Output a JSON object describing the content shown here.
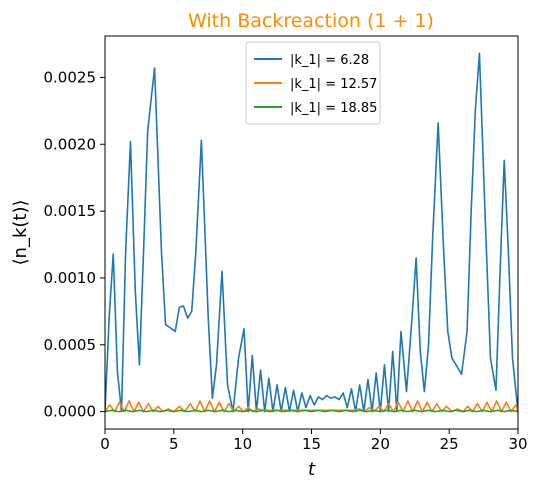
{
  "chart_data": {
    "type": "line",
    "title": "With Backreaction (1 + 1)",
    "title_color": "#ff8c00",
    "xlabel": "t",
    "ylabel": "⟨n_k(t)⟩",
    "xlim": [
      0,
      30
    ],
    "ylim": [
      -0.00013,
      0.00281
    ],
    "xticks": [
      0,
      5,
      10,
      15,
      20,
      25,
      30
    ],
    "xtick_labels": [
      "0",
      "5",
      "10",
      "15",
      "20",
      "25",
      "30"
    ],
    "yticks": [
      0.0,
      0.0005,
      0.001,
      0.0015,
      0.002,
      0.0025
    ],
    "ytick_labels": [
      "0.0000",
      "0.0005",
      "0.0010",
      "0.0015",
      "0.0020",
      "0.0025"
    ],
    "grid": false,
    "legend_position": "top-center",
    "series": [
      {
        "name": "|k_1| = 6.28",
        "color": "#1f77b4",
        "x": [
          0.0,
          0.3,
          0.6,
          0.9,
          1.2,
          1.5,
          1.85,
          2.2,
          2.5,
          2.8,
          3.1,
          3.6,
          4.1,
          4.4,
          4.7,
          5.1,
          5.4,
          5.7,
          6.0,
          6.3,
          6.6,
          7.0,
          7.5,
          7.8,
          8.1,
          8.5,
          8.9,
          9.3,
          9.7,
          10.1,
          10.4,
          10.7,
          11.0,
          11.3,
          11.6,
          11.9,
          12.2,
          12.5,
          12.8,
          13.1,
          13.4,
          13.7,
          14.0,
          14.3,
          14.6,
          14.9,
          15.2,
          15.5,
          15.8,
          16.1,
          16.4,
          16.7,
          17.0,
          17.3,
          17.6,
          17.9,
          18.2,
          18.5,
          18.8,
          19.1,
          19.4,
          19.7,
          20.0,
          20.3,
          20.6,
          20.9,
          21.2,
          21.5,
          21.9,
          22.3,
          22.6,
          22.9,
          23.2,
          23.5,
          23.8,
          24.2,
          24.6,
          24.9,
          25.2,
          25.5,
          25.9,
          26.3,
          26.6,
          26.9,
          27.2,
          27.6,
          28.0,
          28.4,
          28.7,
          29.0,
          29.3,
          29.6,
          30.0
        ],
        "y": [
          0.0,
          0.0007,
          0.00118,
          0.0003,
          0.0,
          0.0012,
          0.00202,
          0.0009,
          0.00035,
          0.0012,
          0.0021,
          0.00257,
          0.0012,
          0.00065,
          0.00063,
          0.0006,
          0.00078,
          0.00079,
          0.0007,
          0.00075,
          0.0012,
          0.00203,
          0.0007,
          0.0001,
          0.00035,
          0.00105,
          0.0002,
          0.0,
          0.0004,
          0.00062,
          0.0,
          0.00042,
          0.0,
          0.00031,
          0.0,
          0.00025,
          0.0,
          0.0002,
          0.0,
          0.00018,
          0.0,
          0.00016,
          0.0,
          0.00014,
          3e-05,
          0.00012,
          5e-05,
          0.00011,
          9e-05,
          0.00012,
          0.0001,
          0.00011,
          9e-05,
          0.00014,
          3e-05,
          0.00017,
          0.0,
          0.0002,
          0.0,
          0.00024,
          0.0,
          0.00029,
          0.0,
          0.00035,
          0.0,
          0.00045,
          0.0,
          0.0006,
          0.00015,
          0.0007,
          0.00115,
          0.00045,
          0.00015,
          0.0005,
          0.0013,
          0.00216,
          0.0012,
          0.0006,
          0.0004,
          0.00035,
          0.00028,
          0.0006,
          0.0015,
          0.00225,
          0.00268,
          0.0015,
          0.0004,
          0.00016,
          0.00105,
          0.00188,
          0.0012,
          0.0004,
          0.0
        ]
      },
      {
        "name": "|k_1| = 12.57",
        "color": "#ff7f0e",
        "x": [
          0.0,
          0.35,
          0.7,
          1.05,
          1.4,
          1.75,
          2.1,
          2.45,
          2.8,
          3.15,
          3.5,
          3.85,
          4.2,
          4.6,
          5.0,
          5.4,
          5.8,
          6.2,
          6.55,
          6.9,
          7.25,
          7.6,
          7.95,
          8.3,
          8.65,
          9.0,
          9.35,
          9.7,
          10.05,
          10.4,
          10.75,
          11.1,
          11.5,
          12.0,
          12.5,
          13.0,
          13.5,
          14.0,
          14.5,
          15.0,
          15.5,
          16.0,
          16.5,
          17.0,
          17.5,
          18.0,
          18.5,
          18.85,
          19.2,
          19.55,
          19.9,
          20.25,
          20.6,
          20.95,
          21.3,
          21.65,
          22.0,
          22.35,
          22.7,
          23.05,
          23.4,
          23.75,
          24.1,
          24.45,
          24.8,
          25.2,
          25.6,
          26.0,
          26.35,
          26.7,
          27.05,
          27.4,
          27.75,
          28.1,
          28.45,
          28.8,
          29.15,
          29.5,
          29.85,
          30.0
        ],
        "y": [
          0.0,
          5e-05,
          0.0,
          7e-05,
          0.0,
          8e-05,
          0.0,
          7e-05,
          0.0,
          6e-05,
          0.0,
          4e-05,
          0.0,
          2e-05,
          0.0,
          4e-05,
          0.0,
          6e-05,
          0.0,
          8e-05,
          0.0,
          8e-05,
          0.0,
          7e-05,
          0.0,
          6e-05,
          0.0,
          4e-05,
          0.0,
          3e-05,
          0.0,
          2e-05,
          1e-05,
          1e-05,
          1e-05,
          1e-05,
          1e-05,
          1e-05,
          1e-05,
          1e-05,
          1e-05,
          1e-05,
          1e-05,
          1e-05,
          1e-05,
          1e-05,
          2e-05,
          0.0,
          3e-05,
          0.0,
          4e-05,
          0.0,
          6e-05,
          0.0,
          7e-05,
          0.0,
          8e-05,
          0.0,
          8e-05,
          0.0,
          7e-05,
          0.0,
          6e-05,
          0.0,
          4e-05,
          0.0,
          2e-05,
          0.0,
          4e-05,
          0.0,
          6e-05,
          0.0,
          7e-05,
          0.0,
          8e-05,
          0.0,
          7e-05,
          0.0,
          5e-05,
          0.0
        ]
      },
      {
        "name": "|k_1| = 18.85",
        "color": "#2ca02c",
        "x": [
          0.0,
          0.5,
          1.0,
          1.5,
          2.0,
          2.5,
          3.0,
          3.5,
          4.0,
          4.5,
          5.0,
          5.5,
          6.0,
          6.5,
          7.0,
          7.5,
          8.0,
          8.5,
          9.0,
          9.5,
          10.0,
          10.5,
          11.0,
          11.5,
          12.0,
          12.5,
          13.0,
          13.5,
          14.0,
          14.5,
          15.0,
          15.5,
          16.0,
          16.5,
          17.0,
          17.5,
          18.0,
          18.5,
          19.0,
          19.5,
          20.0,
          20.5,
          21.0,
          21.5,
          22.0,
          22.5,
          23.0,
          23.5,
          24.0,
          24.5,
          25.0,
          25.5,
          26.0,
          26.5,
          27.0,
          27.5,
          28.0,
          28.5,
          29.0,
          29.5,
          30.0
        ],
        "y": [
          0.0,
          1e-05,
          0.0,
          1e-05,
          0.0,
          1e-05,
          0.0,
          1e-05,
          0.0,
          1e-05,
          0.0,
          1e-05,
          0.0,
          1e-05,
          0.0,
          1e-05,
          0.0,
          1e-05,
          0.0,
          1e-05,
          0.0,
          1e-05,
          0.0,
          1e-05,
          0.0,
          1e-05,
          0.0,
          1e-05,
          0.0,
          1e-05,
          0.0,
          1e-05,
          0.0,
          1e-05,
          0.0,
          1e-05,
          0.0,
          1e-05,
          0.0,
          1e-05,
          0.0,
          1e-05,
          0.0,
          1e-05,
          0.0,
          1e-05,
          0.0,
          1e-05,
          0.0,
          1e-05,
          0.0,
          1e-05,
          0.0,
          1e-05,
          0.0,
          1e-05,
          0.0,
          1e-05,
          0.0,
          1e-05,
          0.0
        ]
      }
    ]
  }
}
